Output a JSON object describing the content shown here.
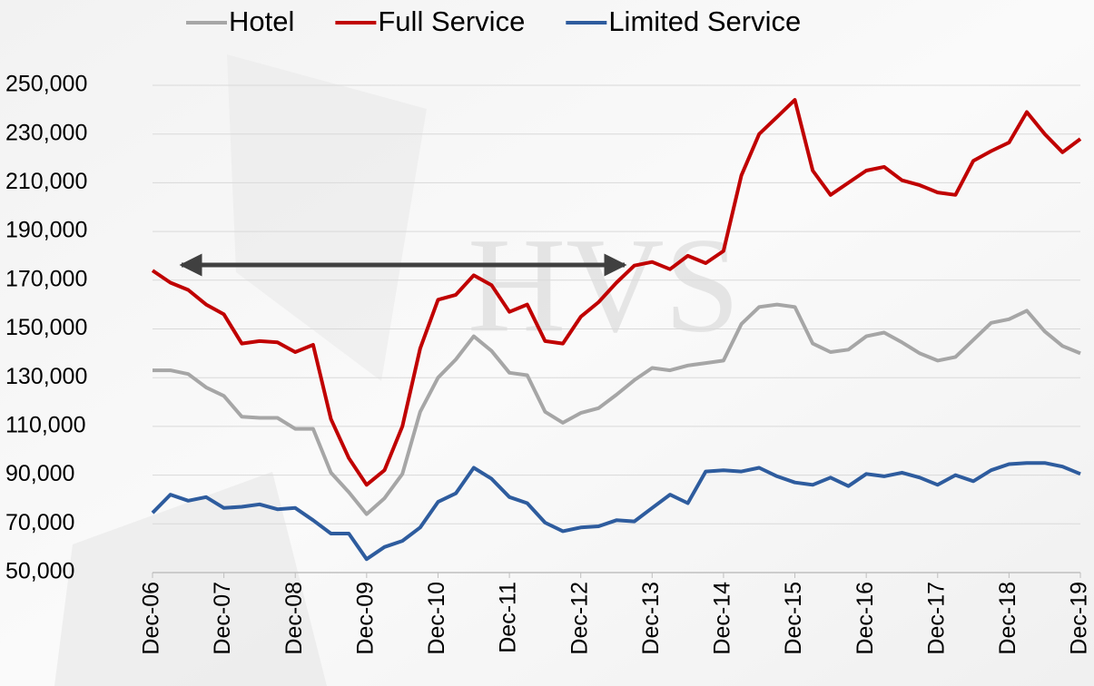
{
  "chart_data": {
    "type": "line",
    "watermark": "HVS",
    "categories": [
      "Dec-06",
      null,
      null,
      null,
      "Dec-07",
      null,
      null,
      null,
      "Dec-08",
      null,
      null,
      null,
      "Dec-09",
      null,
      null,
      null,
      "Dec-10",
      null,
      null,
      null,
      "Dec-11",
      null,
      null,
      null,
      "Dec-12",
      null,
      null,
      null,
      "Dec-13",
      null,
      null,
      null,
      "Dec-14",
      null,
      null,
      null,
      "Dec-15",
      null,
      null,
      null,
      "Dec-16",
      null,
      null,
      null,
      "Dec-17",
      null,
      null,
      null,
      "Dec-18",
      null,
      null,
      null,
      "Dec-19"
    ],
    "series": [
      {
        "name": "Hotel",
        "color": "#a6a6a6",
        "values": [
          133000,
          133000,
          131500,
          126000,
          122500,
          114000,
          113500,
          113500,
          109000,
          109000,
          91000,
          83000,
          74000,
          80500,
          90500,
          116000,
          130000,
          137500,
          147000,
          141000,
          132000,
          131000,
          116000,
          111500,
          115500,
          117500,
          123000,
          129000,
          134000,
          133000,
          135000,
          136000,
          137000,
          152000,
          159000,
          160000,
          159000,
          144000,
          140500,
          141500,
          147000,
          148500,
          144500,
          140000,
          137000,
          138500,
          145500,
          152500,
          154000,
          157500,
          149000,
          143000,
          140000
        ]
      },
      {
        "name": "Full Service",
        "color": "#c00000",
        "values": [
          174000,
          169000,
          166000,
          160000,
          156000,
          144000,
          145000,
          144500,
          140500,
          143500,
          113000,
          97000,
          86000,
          92000,
          110000,
          142000,
          162000,
          164000,
          172000,
          168000,
          157000,
          160000,
          145000,
          144000,
          155000,
          161000,
          169000,
          176000,
          177500,
          174500,
          180000,
          177000,
          182000,
          213000,
          230000,
          237000,
          244000,
          215000,
          205000,
          210000,
          215000,
          216500,
          211000,
          209000,
          206000,
          205000,
          219000,
          223000,
          226500,
          239000,
          230000,
          222500,
          228000
        ]
      },
      {
        "name": "Limited Service",
        "color": "#2e5c9e",
        "values": [
          74500,
          82000,
          79500,
          81000,
          76500,
          77000,
          78000,
          76000,
          76500,
          71500,
          66000,
          66000,
          55500,
          60500,
          63000,
          68500,
          79000,
          82500,
          93000,
          88500,
          81000,
          78500,
          70500,
          67000,
          68500,
          69000,
          71500,
          71000,
          76500,
          82000,
          78500,
          91500,
          92000,
          91500,
          93000,
          89500,
          87000,
          86000,
          89000,
          85500,
          90500,
          89500,
          91000,
          89000,
          86000,
          90000,
          87500,
          92000,
          94500,
          95000,
          95000,
          93500,
          90500
        ]
      }
    ],
    "ylim": [
      50000,
      250000
    ],
    "yticks": [
      {
        "value": 50000,
        "label": "50,000"
      },
      {
        "value": 70000,
        "label": "70,000"
      },
      {
        "value": 90000,
        "label": "90,000"
      },
      {
        "value": 110000,
        "label": "110,000"
      },
      {
        "value": 130000,
        "label": "130,000"
      },
      {
        "value": 150000,
        "label": "150,000"
      },
      {
        "value": 170000,
        "label": "170,000"
      },
      {
        "value": 190000,
        "label": "190,000"
      },
      {
        "value": 210000,
        "label": "210,000"
      },
      {
        "value": 230000,
        "label": "230,000"
      },
      {
        "value": 250000,
        "label": "250,000"
      }
    ],
    "grid": true,
    "legend": "top"
  }
}
